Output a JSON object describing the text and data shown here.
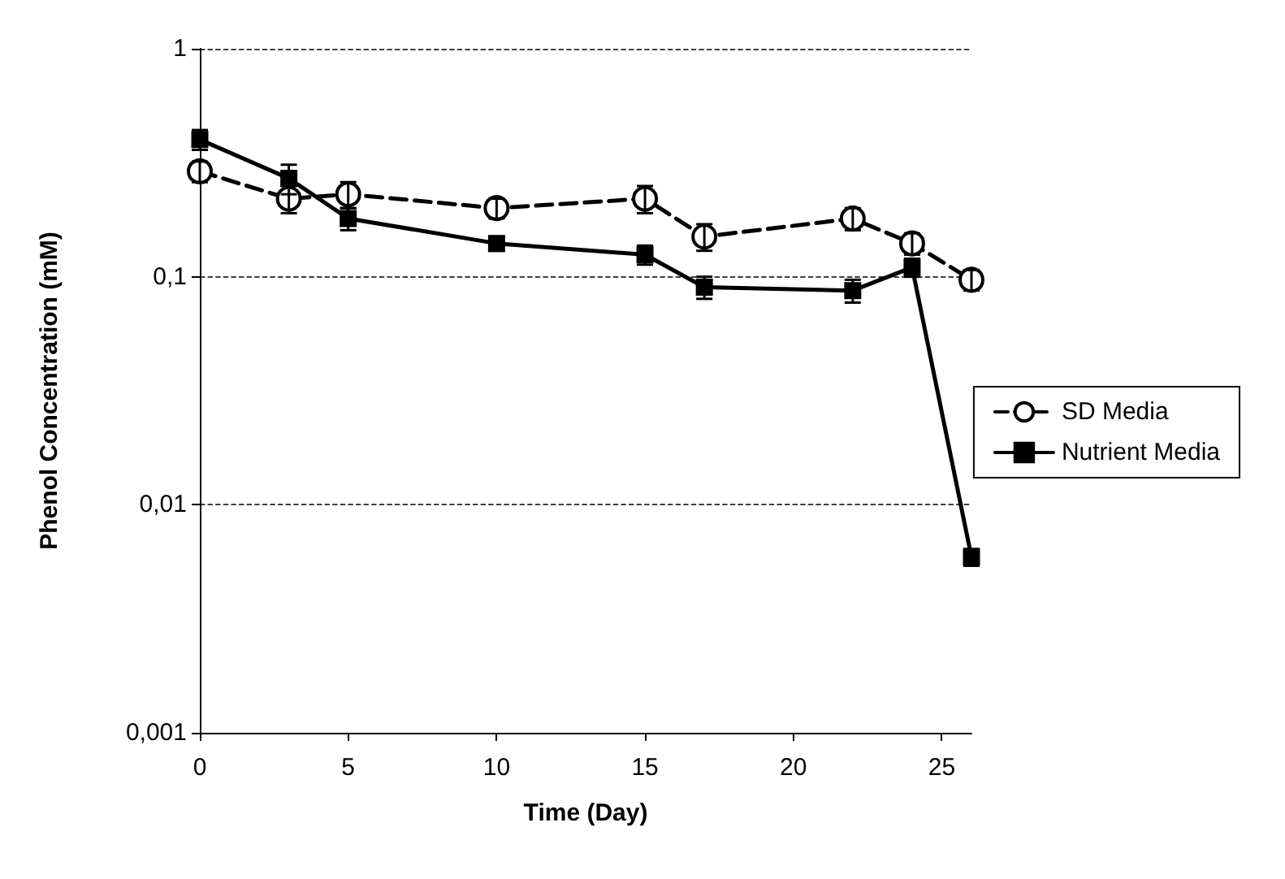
{
  "chart_data": {
    "type": "line",
    "xlabel": "Time (Day)",
    "ylabel": "Phenol Concentration (mM)",
    "log": "y",
    "xlim": [
      0,
      26
    ],
    "xticks": [
      0,
      5,
      10,
      15,
      20,
      25
    ],
    "ylim": [
      0.001,
      1
    ],
    "yticks": [
      {
        "value": 0.001,
        "label": "0,001"
      },
      {
        "value": 0.01,
        "label": "0,01"
      },
      {
        "value": 0.1,
        "label": "0,1"
      },
      {
        "value": 1,
        "label": "1"
      }
    ],
    "grid": "y",
    "legend": "right",
    "x": [
      0,
      3,
      5,
      10,
      15,
      17,
      22,
      24,
      26
    ],
    "series": [
      {
        "name": "SD Media",
        "color": "#000000",
        "marker": "circle",
        "line_style": "dashed",
        "values": [
          0.29,
          0.22,
          0.23,
          0.2,
          0.22,
          0.15,
          0.18,
          0.14,
          0.097
        ],
        "errors": [
          0.03,
          0.03,
          0.03,
          0.02,
          0.03,
          0.02,
          0.02,
          0.015,
          0.01
        ]
      },
      {
        "name": "Nutrient Media",
        "color": "#000000",
        "marker": "square",
        "line_style": "solid",
        "values": [
          0.4,
          0.27,
          0.18,
          0.14,
          0.125,
          0.09,
          0.087,
          0.11,
          0.0059
        ],
        "errors": [
          0.04,
          0.04,
          0.02,
          0.01,
          0.012,
          0.01,
          0.01,
          0.01,
          0.0005
        ]
      }
    ]
  }
}
